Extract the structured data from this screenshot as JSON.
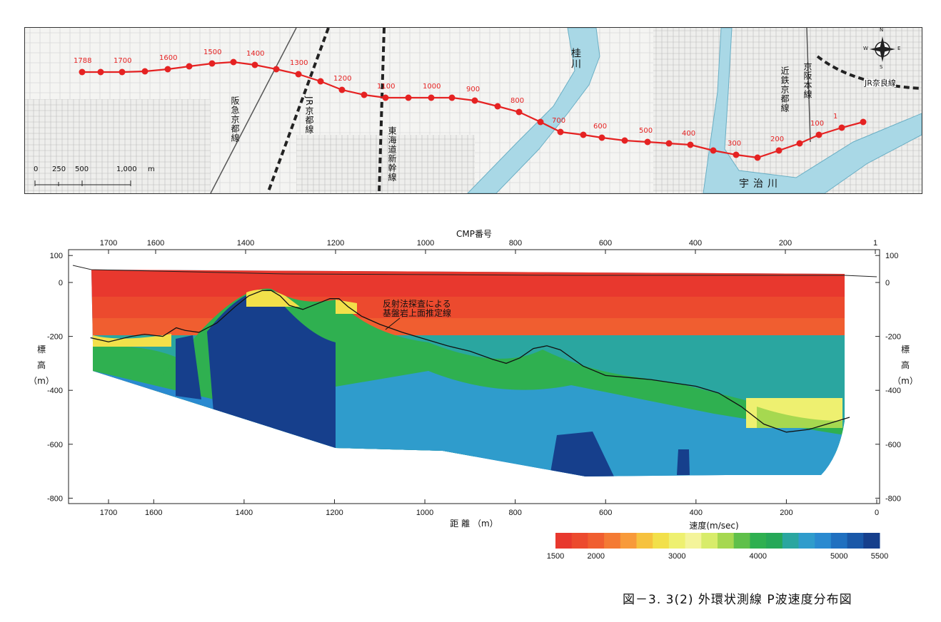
{
  "map": {
    "cmp_labels": [
      "1788",
      "1700",
      "1600",
      "1500",
      "1400",
      "1300",
      "1200",
      "1100",
      "1000",
      "900",
      "800",
      "700",
      "600",
      "500",
      "400",
      "300",
      "200",
      "100",
      "1"
    ],
    "river_katsura": "桂川",
    "river_uji": "宇治川",
    "rail_hankyu": "阪急京都線",
    "rail_jr_kyoto": "JR京都線",
    "rail_shinkansen": "東海道新幹線",
    "rail_kintetsu": "近鉄京都線",
    "rail_keihan": "京阪本線",
    "rail_jr_nara": "JR奈良線",
    "scale_ticks": [
      "0",
      "250",
      "500",
      "1,000"
    ],
    "scale_unit": "m",
    "compass": {
      "n": "N",
      "s": "S",
      "e": "E",
      "w": "W"
    }
  },
  "section": {
    "top_axis_title": "CMP番号",
    "top_ticks": [
      "1700",
      "1600",
      "1400",
      "1200",
      "1000",
      "800",
      "600",
      "400",
      "200",
      "1"
    ],
    "bottom_ticks": [
      "1700",
      "1600",
      "1400",
      "1200",
      "1000",
      "800",
      "600",
      "400",
      "200",
      "0"
    ],
    "bottom_axis_title": "距 離 （m）",
    "y_ticks": [
      "100",
      "0",
      "-200",
      "-400",
      "-600",
      "-800"
    ],
    "y_label_chars": [
      "標",
      "高",
      "（m）"
    ],
    "annotation_line1": "反射法探査による",
    "annotation_line2": "基盤岩上面推定線"
  },
  "colorbar": {
    "title": "速度(m/sec)",
    "ticks": [
      "1500",
      "2000",
      "3000",
      "4000",
      "5000",
      "5500"
    ],
    "colors": [
      "#e8382e",
      "#ec4a2e",
      "#f05e30",
      "#f47a34",
      "#f89a3a",
      "#f6c23e",
      "#f2e04a",
      "#eef070",
      "#f4f49a",
      "#d8ec6a",
      "#a6d850",
      "#5fc04a",
      "#2fb050",
      "#26a858",
      "#2aa6a0",
      "#2f9ccc",
      "#2a8ad0",
      "#2070c0",
      "#1a58a8",
      "#163f8c"
    ]
  },
  "caption": "図－3. 3(2)  外環状測線  P波速度分布図",
  "chart_data": {
    "type": "heatmap",
    "title": "CMP番号",
    "xlabel": "距 離 （m）",
    "ylabel": "標高（m）",
    "xlim": [
      1750,
      0
    ],
    "ylim": [
      -800,
      100
    ],
    "x_ticks": [
      1700,
      1600,
      1400,
      1200,
      1000,
      800,
      600,
      400,
      200,
      0
    ],
    "y_ticks": [
      100,
      0,
      -200,
      -400,
      -600,
      -800
    ],
    "value_unit": "m/sec",
    "value_range": [
      1500,
      5500
    ],
    "colorbar_ticks": [
      1500,
      2000,
      3000,
      4000,
      5000,
      5500
    ],
    "series": [
      {
        "name": "反射法探査による基盤岩上面推定線",
        "x": [
          1740,
          1700,
          1650,
          1620,
          1580,
          1550,
          1530,
          1500,
          1460,
          1420,
          1390,
          1360,
          1340,
          1320,
          1300,
          1270,
          1240,
          1210,
          1190,
          1170,
          1140,
          1100,
          1050,
          1000,
          950,
          900,
          850,
          820,
          790,
          760,
          730,
          700,
          650,
          600,
          500,
          400,
          350,
          300,
          250,
          200,
          150,
          100,
          60
        ],
        "y": [
          -205,
          -220,
          -200,
          -192,
          -200,
          -168,
          -178,
          -185,
          -150,
          -90,
          -50,
          -30,
          -30,
          -50,
          -85,
          -100,
          -80,
          -60,
          -60,
          -90,
          -125,
          -155,
          -185,
          -210,
          -235,
          -255,
          -285,
          -300,
          -280,
          -245,
          -235,
          -250,
          -310,
          -345,
          -360,
          -385,
          -410,
          -460,
          -525,
          -555,
          -545,
          -520,
          -500
        ]
      }
    ]
  }
}
